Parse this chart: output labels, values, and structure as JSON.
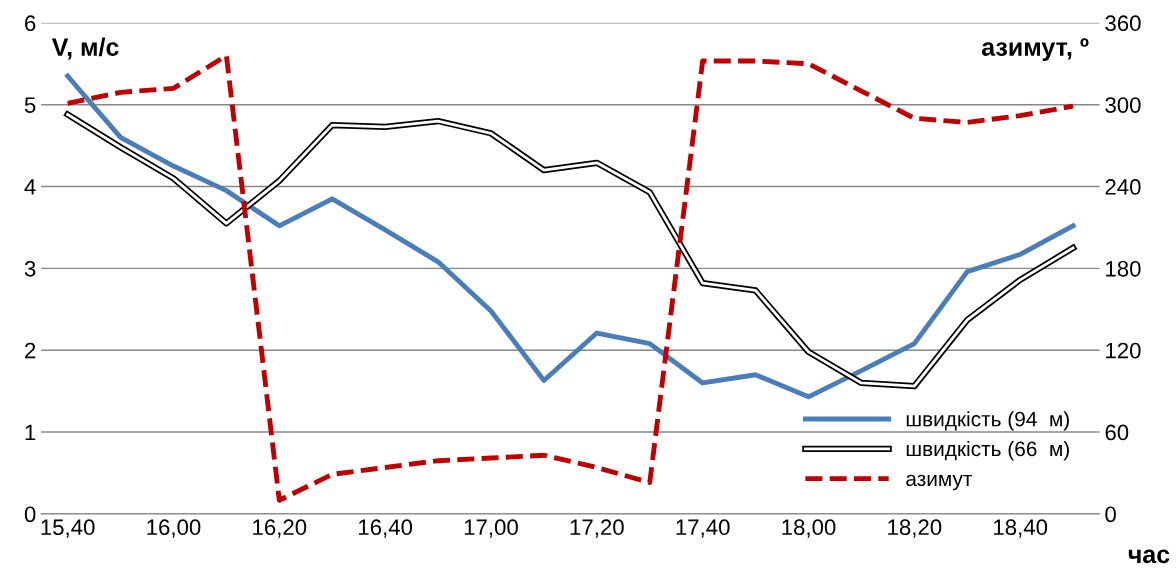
{
  "chart_data": {
    "type": "line",
    "ylabel": "V, м/с",
    "y2label": "азимут, º",
    "xlabel": "час",
    "categories": [
      "15,40",
      null,
      "16,00",
      null,
      "16,20",
      null,
      "16,40",
      null,
      "17,00",
      null,
      "17,20",
      null,
      "17,40",
      null,
      "18,00",
      null,
      "18,20",
      null,
      "18,40",
      null
    ],
    "series": [
      {
        "name": "швидкість (94  м)",
        "color": "#4a7ebb",
        "values": [
          5.35,
          4.6,
          4.25,
          3.95,
          3.52,
          3.85,
          3.47,
          3.08,
          2.48,
          1.63,
          2.21,
          2.08,
          1.6,
          1.7,
          1.43,
          1.75,
          2.08,
          2.96,
          3.17,
          3.52
        ]
      },
      {
        "name": "швидкість (66  м)",
        "color": "#000000",
        "values": [
          4.88,
          4.48,
          4.1,
          3.55,
          4.07,
          4.75,
          4.73,
          4.8,
          4.65,
          4.2,
          4.29,
          3.93,
          2.82,
          2.73,
          1.98,
          1.6,
          1.56,
          2.37,
          2.86,
          3.25
        ]
      },
      {
        "name": "азимут",
        "color": "#c00000",
        "axis": "y2",
        "line_style": "dashed",
        "values": [
          301,
          309,
          312,
          336,
          10,
          29,
          34,
          39,
          41,
          43,
          34,
          23,
          332,
          332,
          330,
          310,
          290,
          287,
          292,
          299
        ]
      }
    ],
    "ylim": [
      0,
      6
    ],
    "yticks": [
      0,
      1,
      2,
      3,
      4,
      5,
      6
    ],
    "y2lim": [
      0,
      360
    ],
    "y2ticks": [
      0,
      60,
      120,
      180,
      240,
      300,
      360
    ],
    "grid": "y",
    "legend": "lower right",
    "marker": "none"
  }
}
